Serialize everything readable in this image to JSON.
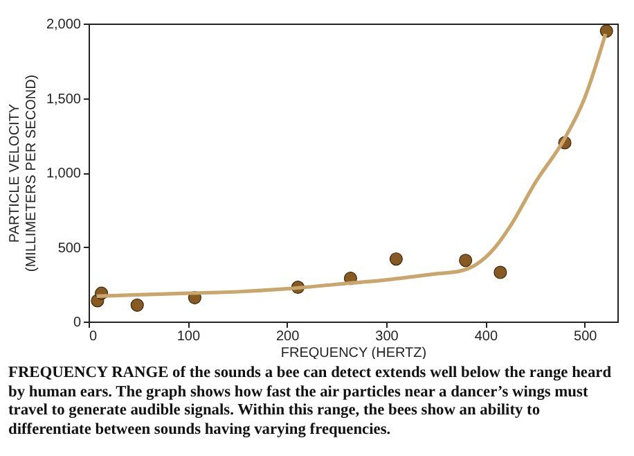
{
  "chart_data": {
    "type": "scatter",
    "xlabel": "FREQUENCY (HERTZ)",
    "ylabel": "PARTICLE VELOCITY\n(MILLIMETERS PER SECOND)",
    "xlim": [
      0,
      533
    ],
    "ylim": [
      0,
      2000
    ],
    "xticks": [
      0,
      100,
      200,
      300,
      400,
      500
    ],
    "yticks": [
      0,
      500,
      {
        "value": 1000,
        "label": "1,000"
      },
      {
        "value": 1500,
        "label": "1,500"
      },
      {
        "value": 2000,
        "label": "2,000"
      }
    ],
    "grid": false,
    "marker": "circle",
    "series": [
      {
        "color": "#875a22",
        "x": [
          9,
          13,
          49,
          107,
          211,
          264,
          310,
          380,
          415,
          480,
          522
        ],
        "values": [
          140,
          190,
          110,
          160,
          230,
          290,
          420,
          410,
          330,
          1200,
          1950
        ]
      },
      {
        "type": "line",
        "color": "#c9a66b",
        "marker": "none",
        "x": [
          8,
          50,
          100,
          150,
          200,
          250,
          300,
          350,
          375,
          390,
          400,
          410,
          425,
          450,
          480,
          500,
          521
        ],
        "values": [
          170,
          180,
          190,
          200,
          220,
          250,
          280,
          320,
          340,
          380,
          430,
          500,
          640,
          930,
          1230,
          1500,
          1930
        ]
      }
    ],
    "annotations": [
      "FREQUENCY RANGE of the sounds a bee can detect extends well below the range heard by human ears. The graph shows how fast the air particles near a dancer’s wings must travel to generate audible signals. Within this range, the bees show an ability to differentiate between sounds having varying frequencies."
    ]
  }
}
